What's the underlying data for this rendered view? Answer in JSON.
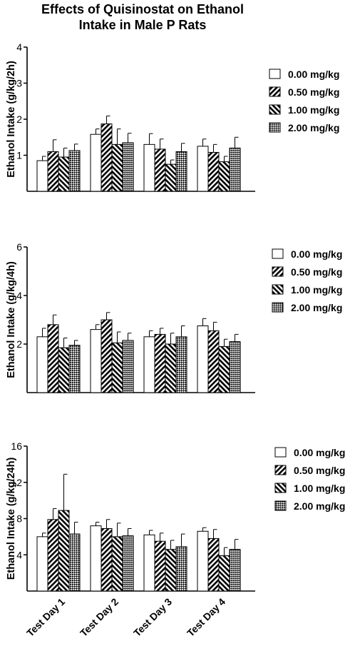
{
  "figure_title": [
    "Effects of Quisinostat on Ethanol",
    "Intake in Male P Rats"
  ],
  "chart_data": [
    {
      "type": "bar",
      "categories": [
        "Test Day 1",
        "Test Day 2",
        "Test Day 3",
        "Test Day 4"
      ],
      "ylabel": "Ethanol Intake (g/kg/2h)",
      "ylim": [
        0,
        4
      ],
      "yticks": [
        1,
        2,
        3,
        4
      ],
      "series": [
        {
          "name": "0.00 mg/kg",
          "values": [
            0.85,
            1.58,
            1.3,
            1.25
          ],
          "errors": [
            0.12,
            0.15,
            0.3,
            0.2
          ]
        },
        {
          "name": "0.50 mg/kg",
          "values": [
            1.1,
            1.87,
            1.17,
            1.08
          ],
          "errors": [
            0.33,
            0.22,
            0.28,
            0.22
          ]
        },
        {
          "name": "1.00  mg/kg",
          "values": [
            0.95,
            1.3,
            0.75,
            0.82
          ],
          "errors": [
            0.25,
            0.43,
            0.12,
            0.15
          ]
        },
        {
          "name": "2.00 mg/kg",
          "values": [
            1.13,
            1.35,
            1.1,
            1.2
          ],
          "errors": [
            0.18,
            0.26,
            0.23,
            0.3
          ]
        }
      ]
    },
    {
      "type": "bar",
      "categories": [
        "Test Day 1",
        "Test Day 2",
        "Test Day 3",
        "Test Day 4"
      ],
      "ylabel": "Ethanol Intake (g/kg/4h)",
      "ylim": [
        0,
        6
      ],
      "yticks": [
        2,
        4,
        6
      ],
      "series": [
        {
          "name": "0.00 mg/kg",
          "values": [
            2.3,
            2.6,
            2.3,
            2.75
          ],
          "errors": [
            0.35,
            0.2,
            0.25,
            0.3
          ]
        },
        {
          "name": "0.50 mg/kg",
          "values": [
            2.8,
            3.0,
            2.4,
            2.55
          ],
          "errors": [
            0.4,
            0.3,
            0.25,
            0.35
          ]
        },
        {
          "name": "1.00 mg/kg",
          "values": [
            1.85,
            2.05,
            2.0,
            1.9
          ],
          "errors": [
            0.4,
            0.45,
            0.45,
            0.3
          ]
        },
        {
          "name": "2.00 mg/kg",
          "values": [
            1.95,
            2.15,
            2.3,
            2.1
          ],
          "errors": [
            0.2,
            0.3,
            0.45,
            0.3
          ]
        }
      ]
    },
    {
      "type": "bar",
      "categories": [
        "Test Day 1",
        "Test Day 2",
        "Test Day 3",
        "Test Day 4"
      ],
      "ylabel": "Ethanol Intake (g/kg/24h)",
      "ylim": [
        0,
        16
      ],
      "yticks": [
        4,
        8,
        12,
        16
      ],
      "series": [
        {
          "name": "0.00 mg/kg",
          "values": [
            6.0,
            7.2,
            6.2,
            6.6
          ],
          "errors": [
            0.4,
            0.4,
            0.5,
            0.4
          ]
        },
        {
          "name": "0.50 mg/kg",
          "values": [
            7.9,
            6.9,
            5.5,
            5.8
          ],
          "errors": [
            1.2,
            1.0,
            0.9,
            1.0
          ]
        },
        {
          "name": "1.00 mg/kg",
          "values": [
            8.9,
            6.0,
            4.6,
            3.9
          ],
          "errors": [
            4.0,
            1.5,
            1.0,
            0.9
          ]
        },
        {
          "name": "2.00 mg/kg",
          "values": [
            6.3,
            6.1,
            4.9,
            4.6
          ],
          "errors": [
            1.3,
            0.8,
            1.4,
            1.1
          ]
        }
      ]
    }
  ]
}
